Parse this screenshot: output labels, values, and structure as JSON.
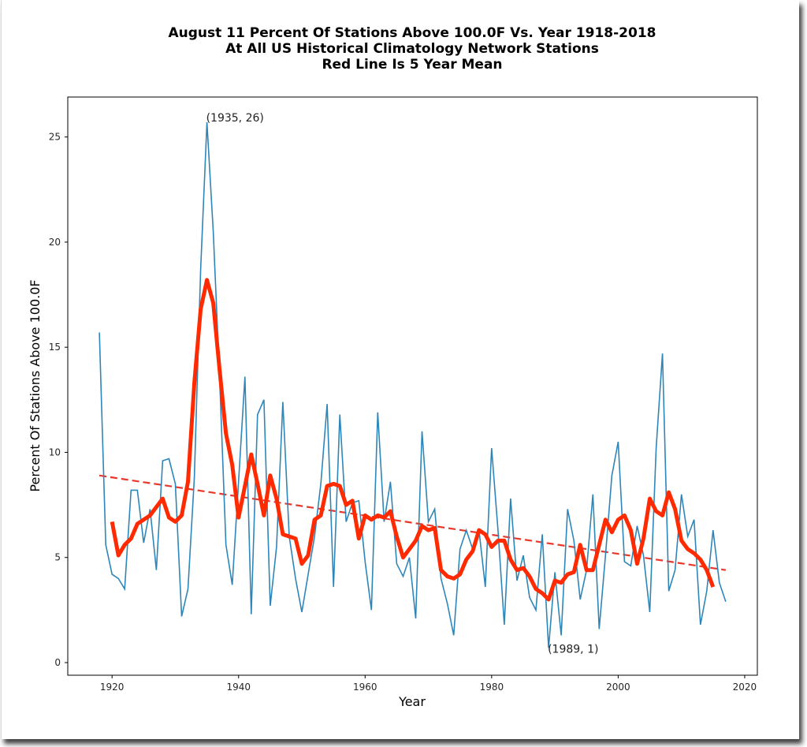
{
  "chart_data": {
    "type": "line",
    "title": [
      "August 11 Percent Of Stations Above 100.0F Vs. Year 1918-2018",
      "At All US Historical Climatology Network Stations",
      "Red Line Is 5 Year Mean"
    ],
    "xlabel": "Year",
    "ylabel": "Percent Of Stations Above 100.0F",
    "xlim": [
      1913,
      2022
    ],
    "ylim": [
      -0.6,
      26.9
    ],
    "xticks": [
      1920,
      1940,
      1960,
      1980,
      2000,
      2020
    ],
    "yticks": [
      0,
      5,
      10,
      15,
      20,
      25
    ],
    "grid": false,
    "legend": "none",
    "colors": {
      "annual": "#2e86b8",
      "mean": "#ff2a00",
      "trend": "#e8382a"
    },
    "series": [
      {
        "name": "Annual percent",
        "style": "thin-line",
        "start_year": 1918,
        "values": [
          15.7,
          5.6,
          4.2,
          4.0,
          3.5,
          8.2,
          8.2,
          5.7,
          7.3,
          4.4,
          9.6,
          9.7,
          8.5,
          2.2,
          3.5,
          8.8,
          18.7,
          25.7,
          20.5,
          13.5,
          5.6,
          3.7,
          8.6,
          13.6,
          2.3,
          11.8,
          12.5,
          2.7,
          5.5,
          12.4,
          6.0,
          4.0,
          2.4,
          4.2,
          6.0,
          8.5,
          12.3,
          3.6,
          11.8,
          6.7,
          7.6,
          7.7,
          4.8,
          2.5,
          11.9,
          6.7,
          8.6,
          4.7,
          4.1,
          5.0,
          2.1,
          11.0,
          6.7,
          7.3,
          4.0,
          2.8,
          1.3,
          5.4,
          6.3,
          5.4,
          6.3,
          3.6,
          10.2,
          6.3,
          1.8,
          7.8,
          3.9,
          5.1,
          3.1,
          2.5,
          6.1,
          0.7,
          4.3,
          1.3,
          7.3,
          5.8,
          3.0,
          4.4,
          8.0,
          1.6,
          5.1,
          8.9,
          10.5,
          4.8,
          4.6,
          6.5,
          5.1,
          2.4,
          10.2,
          14.7,
          3.4,
          4.4,
          8.0,
          6.0,
          6.8,
          1.8,
          3.4,
          6.3,
          3.8,
          2.9
        ]
      },
      {
        "name": "5 Year Mean",
        "style": "thick-line",
        "start_year": 1920,
        "values": [
          6.7,
          5.1,
          5.6,
          5.9,
          6.6,
          6.8,
          7.0,
          7.4,
          7.8,
          6.9,
          6.7,
          7.0,
          8.6,
          13.3,
          16.8,
          18.2,
          17.1,
          13.9,
          10.9,
          9.4,
          6.9,
          8.4,
          9.9,
          8.5,
          7.0,
          8.9,
          7.8,
          6.1,
          6.0,
          5.9,
          4.7,
          5.1,
          6.8,
          7.0,
          8.4,
          8.5,
          8.4,
          7.5,
          7.7,
          5.9,
          7.0,
          6.8,
          7.0,
          6.9,
          7.2,
          6.0,
          5.0,
          5.4,
          5.8,
          6.5,
          6.3,
          6.4,
          4.4,
          4.1,
          4.0,
          4.2,
          4.9,
          5.3,
          6.3,
          6.1,
          5.5,
          5.8,
          5.8,
          4.9,
          4.4,
          4.5,
          4.1,
          3.5,
          3.3,
          3.0,
          3.9,
          3.8,
          4.2,
          4.3,
          5.6,
          4.4,
          4.4,
          5.6,
          6.8,
          6.2,
          6.8,
          7.0,
          6.3,
          4.7,
          5.9,
          7.8,
          7.2,
          7.0,
          8.1,
          7.3,
          5.8,
          5.4,
          5.2,
          4.9,
          4.4,
          3.6
        ]
      },
      {
        "name": "Linear trend",
        "style": "dashed",
        "x": [
          1918,
          2017
        ],
        "values": [
          8.9,
          4.4
        ]
      }
    ],
    "annotations": [
      {
        "text": "(1935, 26)",
        "x": 1935,
        "y": 25.7
      },
      {
        "text": "(1989, 1)",
        "x": 1989,
        "y": 0.7
      }
    ]
  }
}
